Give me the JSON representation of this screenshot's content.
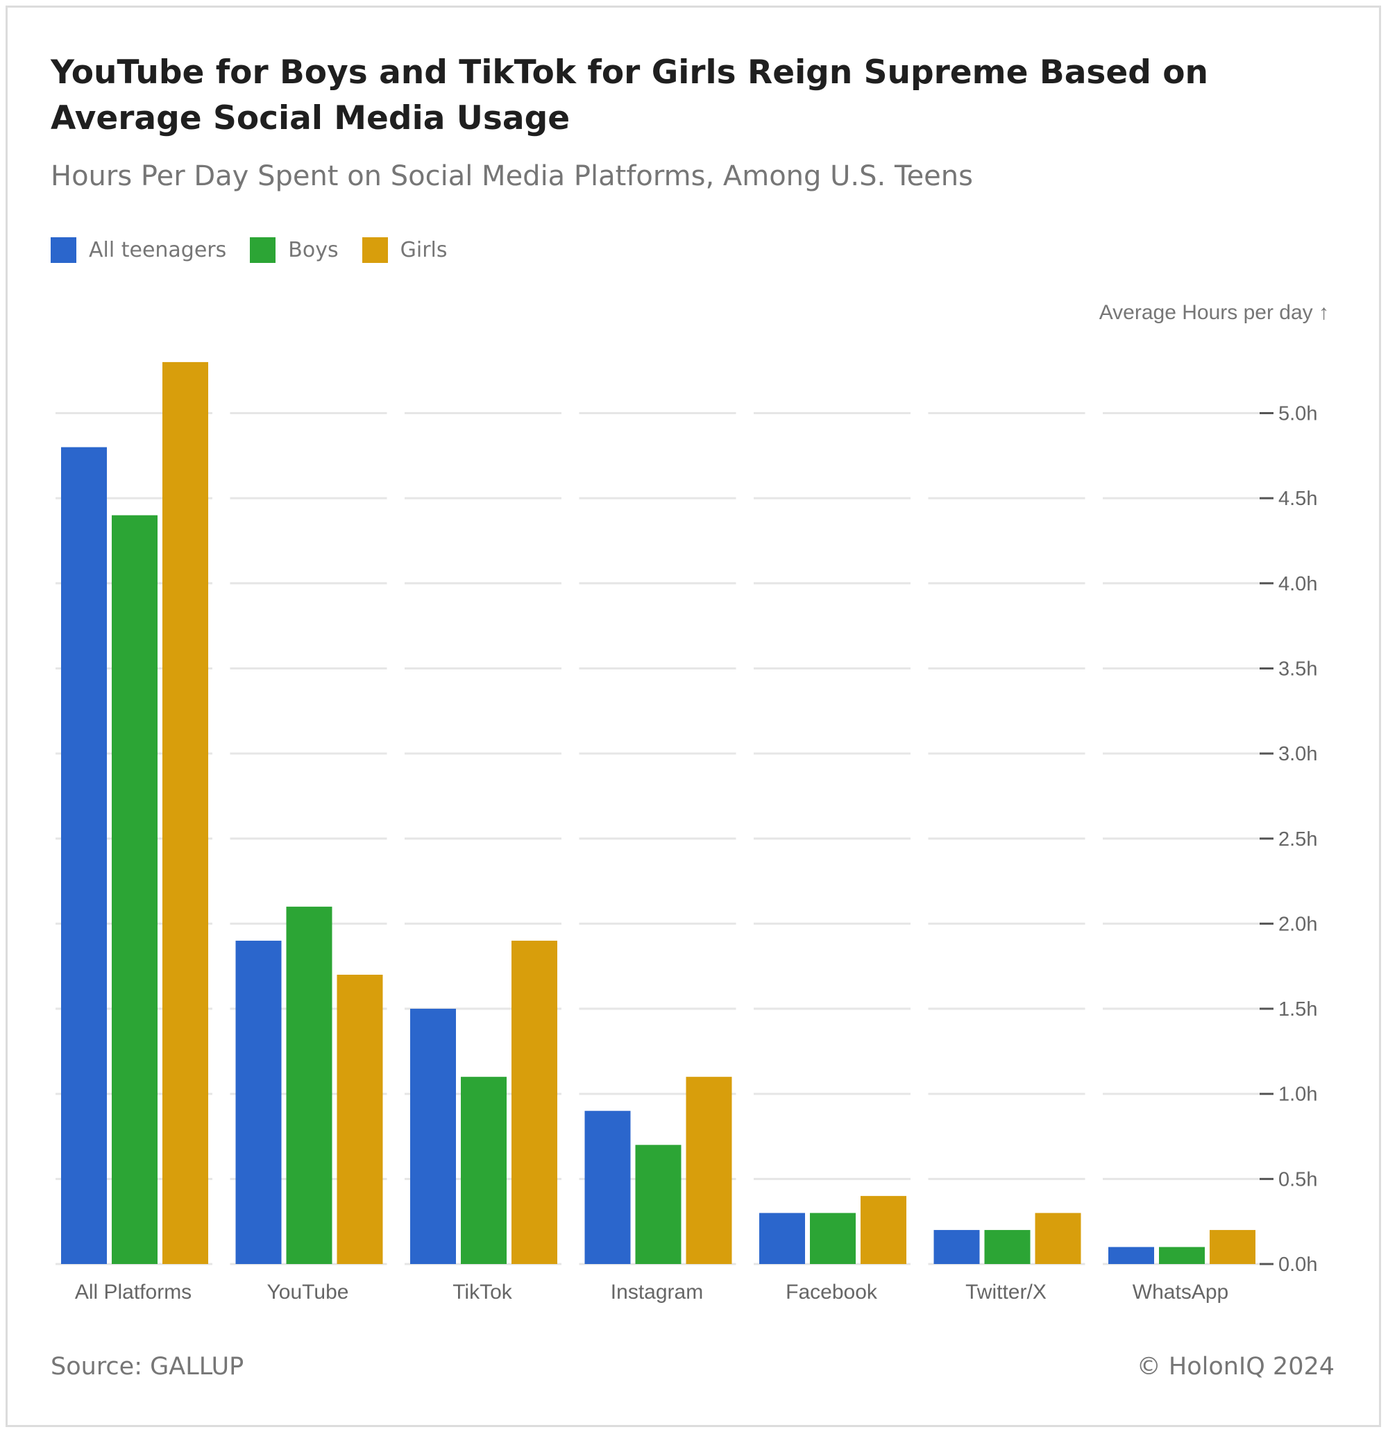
{
  "chart_data": {
    "type": "bar",
    "title": "YouTube for Boys and TikTok for Girls Reign Supreme Based on Average Social Media Usage",
    "subtitle": "Hours Per Day Spent on Social Media Platforms, Among U.S. Teens",
    "ylabel": "Average Hours per day ↑",
    "xlabel": "",
    "ylim": [
      0,
      5.3
    ],
    "yticks": [
      0.0,
      0.5,
      1.0,
      1.5,
      2.0,
      2.5,
      3.0,
      3.5,
      4.0,
      4.5,
      5.0
    ],
    "ytick_labels": [
      "0.0h",
      "0.5h",
      "1.0h",
      "1.5h",
      "2.0h",
      "2.5h",
      "3.0h",
      "3.5h",
      "4.0h",
      "4.5h",
      "5.0h"
    ],
    "categories": [
      "All Platforms",
      "YouTube",
      "TikTok",
      "Instagram",
      "Facebook",
      "Twitter/X",
      "WhatsApp"
    ],
    "series": [
      {
        "name": "All teenagers",
        "color": "#2b66cc",
        "values": [
          4.8,
          1.9,
          1.5,
          0.9,
          0.3,
          0.2,
          0.1
        ]
      },
      {
        "name": "Boys",
        "color": "#2ca535",
        "values": [
          4.4,
          2.1,
          1.1,
          0.7,
          0.3,
          0.2,
          0.1
        ]
      },
      {
        "name": "Girls",
        "color": "#d89e0c",
        "values": [
          5.3,
          1.7,
          1.9,
          1.1,
          0.4,
          0.3,
          0.2
        ]
      }
    ],
    "grid": true,
    "legend_position": "top-left"
  },
  "footer": {
    "source": "Source: GALLUP",
    "copyright": "© HolonIQ 2024"
  }
}
